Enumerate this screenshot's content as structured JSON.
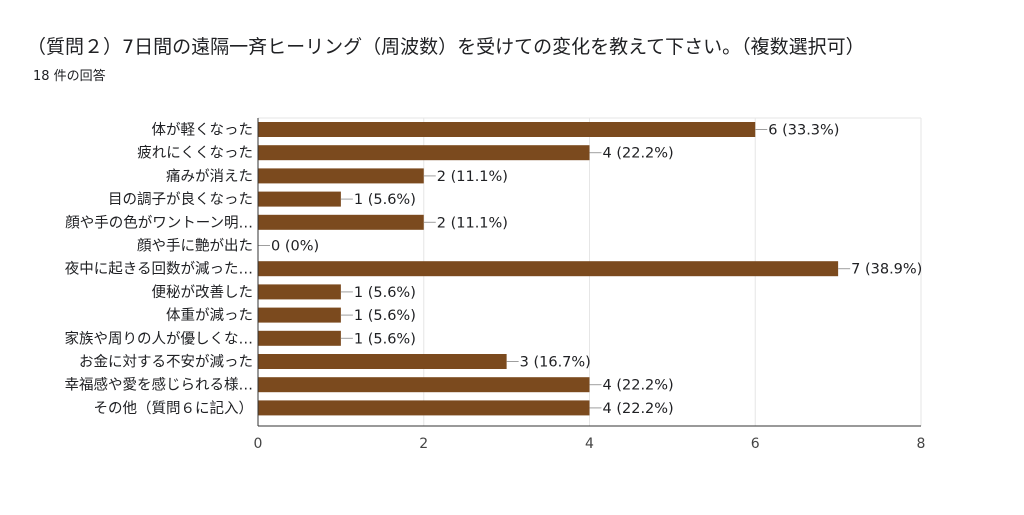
{
  "header": {
    "title": "（質問２）7日間の遠隔一斉ヒーリング（周波数）を受けての変化を教えて下さい。（複数選択可）",
    "response_count": "18 件の回答"
  },
  "chart_data": {
    "type": "bar",
    "orientation": "horizontal",
    "title": "（質問２）7日間の遠隔一斉ヒーリング（周波数）を受けての変化を教えて下さい。（複数選択可）",
    "subtitle": "18 件の回答",
    "categories": [
      "体が軽くなった",
      "疲れにくくなった",
      "痛みが消えた",
      "目の調子が良くなった",
      "顔や手の色がワントーン明…",
      "顔や手に艶が出た",
      "夜中に起きる回数が減った…",
      "便秘が改善した",
      "体重が減った",
      "家族や周りの人が優しくな…",
      "お金に対する不安が減った",
      "幸福感や愛を感じられる様…",
      "その他（質問６に記入）"
    ],
    "values": [
      6,
      4,
      2,
      1,
      2,
      0,
      7,
      1,
      1,
      1,
      3,
      4,
      4
    ],
    "value_labels": [
      "6 (33.3%)",
      "4 (22.2%)",
      "2 (11.1%)",
      "1 (5.6%)",
      "2 (11.1%)",
      "0 (0%)",
      "7 (38.9%)",
      "1 (5.6%)",
      "1 (5.6%)",
      "1 (5.6%)",
      "3 (16.7%)",
      "4 (22.2%)",
      "4 (22.2%)"
    ],
    "xlim": [
      0,
      8
    ],
    "xticks": [
      0,
      2,
      4,
      6,
      8
    ],
    "xlabel": "",
    "ylabel": "",
    "grid": true,
    "legend": "none",
    "bar_color": "#7b4a1e",
    "grid_color": "#e6e6e6",
    "axis_color": "#333333"
  }
}
